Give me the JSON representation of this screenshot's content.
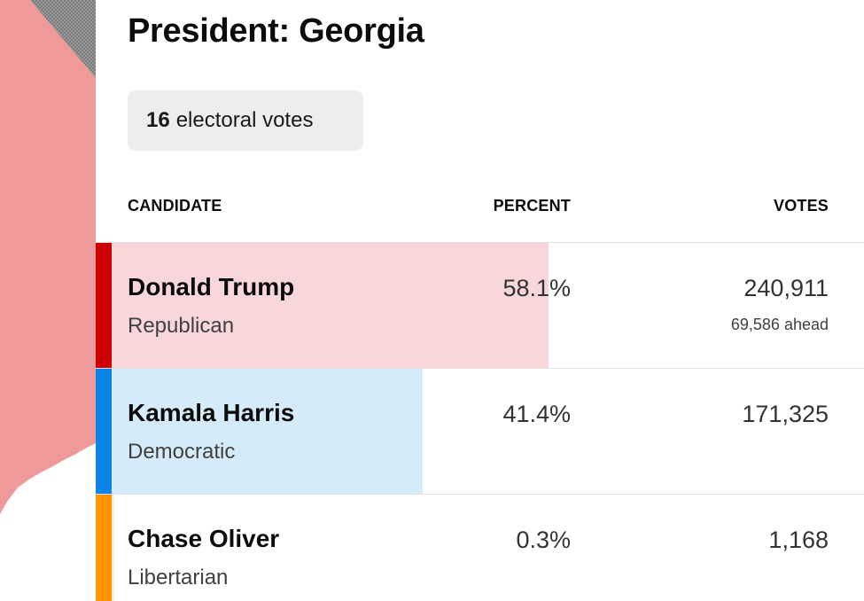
{
  "race": {
    "title": "President: Georgia",
    "electoral_votes_number": "16",
    "electoral_votes_label": "electoral votes"
  },
  "table": {
    "headers": {
      "candidate": "CANDIDATE",
      "percent": "PERCENT",
      "votes": "VOTES"
    },
    "rows": [
      {
        "name": "Donald Trump",
        "party": "Republican",
        "percent": "58.1%",
        "percent_value": 58.1,
        "votes": "240,911",
        "ahead": "69,586 ahead",
        "stripe_color": "#cc0000",
        "fill_color": "#f8d7da"
      },
      {
        "name": "Kamala Harris",
        "party": "Democratic",
        "percent": "41.4%",
        "percent_value": 41.4,
        "votes": "171,325",
        "ahead": "",
        "stripe_color": "#0a84e6",
        "fill_color": "#d5ebfa"
      },
      {
        "name": "Chase Oliver",
        "party": "Libertarian",
        "percent": "0.3%",
        "percent_value": 0.3,
        "votes": "1,168",
        "ahead": "",
        "stripe_color": "#ff9400",
        "fill_color": "#fff0dc"
      }
    ]
  },
  "colors": {
    "map_red": "#ef9a9a",
    "map_hatch": "#8a8a8a"
  }
}
